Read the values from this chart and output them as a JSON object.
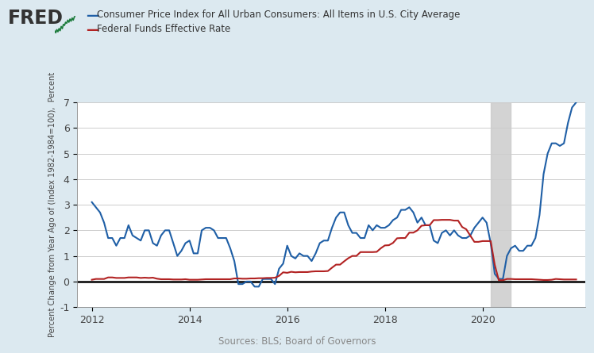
{
  "legend_cpi": "Consumer Price Index for All Urban Consumers: All Items in U.S. City Average",
  "legend_ffr": "Federal Funds Effective Rate",
  "ylabel": "Percent Change from Year Ago of (Index 1982-1984=100),  Percent",
  "source": "Sources: BLS; Board of Governors",
  "ylim": [
    -1,
    7
  ],
  "yticks": [
    -1,
    0,
    1,
    2,
    3,
    4,
    5,
    6,
    7
  ],
  "recession_start": 2020.17,
  "recession_end": 2020.58,
  "bg_color": "#dce9f0",
  "plot_bg_color": "#ffffff",
  "cpi_color": "#1f5fa6",
  "ffr_color": "#b22222",
  "xtick_positions": [
    2012,
    2014,
    2016,
    2018,
    2020
  ],
  "xlim_left": 2011.7,
  "xlim_right": 2022.1,
  "cpi_data": {
    "dates": [
      2012.0,
      2012.083,
      2012.167,
      2012.25,
      2012.333,
      2012.417,
      2012.5,
      2012.583,
      2012.667,
      2012.75,
      2012.833,
      2012.917,
      2013.0,
      2013.083,
      2013.167,
      2013.25,
      2013.333,
      2013.417,
      2013.5,
      2013.583,
      2013.667,
      2013.75,
      2013.833,
      2013.917,
      2014.0,
      2014.083,
      2014.167,
      2014.25,
      2014.333,
      2014.417,
      2014.5,
      2014.583,
      2014.667,
      2014.75,
      2014.833,
      2014.917,
      2015.0,
      2015.083,
      2015.167,
      2015.25,
      2015.333,
      2015.417,
      2015.5,
      2015.583,
      2015.667,
      2015.75,
      2015.833,
      2015.917,
      2016.0,
      2016.083,
      2016.167,
      2016.25,
      2016.333,
      2016.417,
      2016.5,
      2016.583,
      2016.667,
      2016.75,
      2016.833,
      2016.917,
      2017.0,
      2017.083,
      2017.167,
      2017.25,
      2017.333,
      2017.417,
      2017.5,
      2017.583,
      2017.667,
      2017.75,
      2017.833,
      2017.917,
      2018.0,
      2018.083,
      2018.167,
      2018.25,
      2018.333,
      2018.417,
      2018.5,
      2018.583,
      2018.667,
      2018.75,
      2018.833,
      2018.917,
      2019.0,
      2019.083,
      2019.167,
      2019.25,
      2019.333,
      2019.417,
      2019.5,
      2019.583,
      2019.667,
      2019.75,
      2019.833,
      2019.917,
      2020.0,
      2020.083,
      2020.167,
      2020.25,
      2020.333,
      2020.417,
      2020.5,
      2020.583,
      2020.667,
      2020.75,
      2020.833,
      2020.917,
      2021.0,
      2021.083,
      2021.167,
      2021.25,
      2021.333,
      2021.417,
      2021.5,
      2021.583,
      2021.667,
      2021.75,
      2021.833,
      2021.917
    ],
    "values": [
      3.1,
      2.9,
      2.7,
      2.3,
      1.7,
      1.7,
      1.4,
      1.7,
      1.7,
      2.2,
      1.8,
      1.7,
      1.6,
      2.0,
      2.0,
      1.5,
      1.4,
      1.8,
      2.0,
      2.0,
      1.5,
      1.0,
      1.2,
      1.5,
      1.6,
      1.1,
      1.1,
      2.0,
      2.1,
      2.1,
      2.0,
      1.7,
      1.7,
      1.7,
      1.3,
      0.8,
      -0.1,
      -0.1,
      0.0,
      0.0,
      -0.2,
      -0.2,
      0.1,
      0.1,
      0.1,
      -0.1,
      0.5,
      0.7,
      1.4,
      1.0,
      0.9,
      1.1,
      1.0,
      1.0,
      0.8,
      1.1,
      1.5,
      1.6,
      1.6,
      2.1,
      2.5,
      2.7,
      2.7,
      2.2,
      1.9,
      1.9,
      1.7,
      1.7,
      2.2,
      2.0,
      2.2,
      2.1,
      2.1,
      2.2,
      2.4,
      2.5,
      2.8,
      2.8,
      2.9,
      2.7,
      2.3,
      2.5,
      2.2,
      2.2,
      1.6,
      1.5,
      1.9,
      2.0,
      1.8,
      2.0,
      1.8,
      1.7,
      1.7,
      1.8,
      2.1,
      2.3,
      2.5,
      2.3,
      1.5,
      0.3,
      0.1,
      0.1,
      1.0,
      1.3,
      1.4,
      1.2,
      1.2,
      1.4,
      1.4,
      1.7,
      2.6,
      4.2,
      5.0,
      5.4,
      5.4,
      5.3,
      5.4,
      6.2,
      6.8,
      7.0
    ]
  },
  "ffr_data": {
    "dates": [
      2012.0,
      2012.083,
      2012.167,
      2012.25,
      2012.333,
      2012.417,
      2012.5,
      2012.583,
      2012.667,
      2012.75,
      2012.833,
      2012.917,
      2013.0,
      2013.083,
      2013.167,
      2013.25,
      2013.333,
      2013.417,
      2013.5,
      2013.583,
      2013.667,
      2013.75,
      2013.833,
      2013.917,
      2014.0,
      2014.083,
      2014.167,
      2014.25,
      2014.333,
      2014.417,
      2014.5,
      2014.583,
      2014.667,
      2014.75,
      2014.833,
      2014.917,
      2015.0,
      2015.083,
      2015.167,
      2015.25,
      2015.333,
      2015.417,
      2015.5,
      2015.583,
      2015.667,
      2015.75,
      2015.833,
      2015.917,
      2016.0,
      2016.083,
      2016.167,
      2016.25,
      2016.333,
      2016.417,
      2016.5,
      2016.583,
      2016.667,
      2016.75,
      2016.833,
      2016.917,
      2017.0,
      2017.083,
      2017.167,
      2017.25,
      2017.333,
      2017.417,
      2017.5,
      2017.583,
      2017.667,
      2017.75,
      2017.833,
      2017.917,
      2018.0,
      2018.083,
      2018.167,
      2018.25,
      2018.333,
      2018.417,
      2018.5,
      2018.583,
      2018.667,
      2018.75,
      2018.833,
      2018.917,
      2019.0,
      2019.083,
      2019.167,
      2019.25,
      2019.333,
      2019.417,
      2019.5,
      2019.583,
      2019.667,
      2019.75,
      2019.833,
      2019.917,
      2020.0,
      2020.083,
      2020.167,
      2020.25,
      2020.333,
      2020.417,
      2020.5,
      2020.583,
      2020.667,
      2020.75,
      2020.833,
      2020.917,
      2021.0,
      2021.083,
      2021.167,
      2021.25,
      2021.333,
      2021.417,
      2021.5,
      2021.583,
      2021.667,
      2021.75,
      2021.833,
      2021.917
    ],
    "values": [
      0.07,
      0.1,
      0.1,
      0.1,
      0.16,
      0.16,
      0.14,
      0.14,
      0.14,
      0.16,
      0.16,
      0.16,
      0.14,
      0.15,
      0.14,
      0.15,
      0.11,
      0.09,
      0.09,
      0.09,
      0.08,
      0.08,
      0.08,
      0.09,
      0.07,
      0.07,
      0.07,
      0.08,
      0.09,
      0.09,
      0.09,
      0.09,
      0.09,
      0.09,
      0.09,
      0.12,
      0.12,
      0.11,
      0.11,
      0.12,
      0.12,
      0.13,
      0.13,
      0.14,
      0.14,
      0.15,
      0.22,
      0.36,
      0.34,
      0.38,
      0.36,
      0.37,
      0.37,
      0.37,
      0.39,
      0.4,
      0.4,
      0.4,
      0.41,
      0.54,
      0.66,
      0.66,
      0.79,
      0.91,
      1.0,
      1.0,
      1.15,
      1.15,
      1.15,
      1.15,
      1.16,
      1.3,
      1.41,
      1.42,
      1.51,
      1.69,
      1.7,
      1.7,
      1.91,
      1.91,
      2.0,
      2.18,
      2.2,
      2.2,
      2.4,
      2.4,
      2.41,
      2.41,
      2.41,
      2.38,
      2.38,
      2.13,
      2.04,
      1.79,
      1.55,
      1.55,
      1.58,
      1.58,
      1.58,
      0.65,
      0.05,
      0.05,
      0.1,
      0.1,
      0.09,
      0.09,
      0.09,
      0.09,
      0.09,
      0.08,
      0.07,
      0.06,
      0.06,
      0.07,
      0.1,
      0.09,
      0.08,
      0.08,
      0.08,
      0.08
    ]
  }
}
